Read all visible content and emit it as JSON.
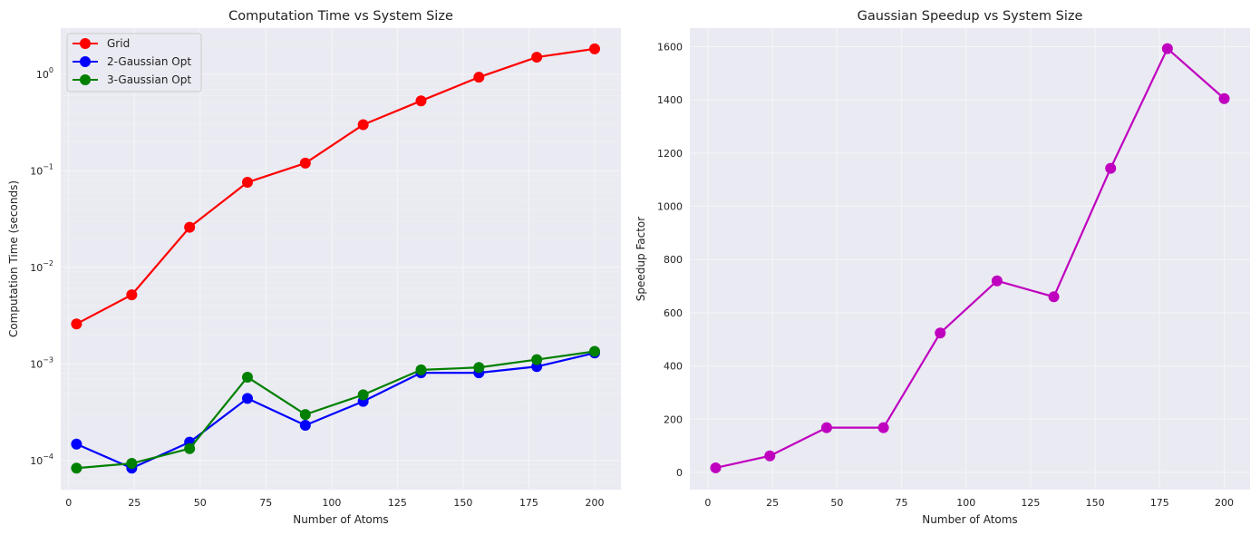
{
  "chart_data": [
    {
      "type": "line",
      "title": "Computation Time vs System Size",
      "xlabel": "Number of Atoms",
      "ylabel": "Computation Time (seconds)",
      "yscale": "log",
      "xlim": [
        -3,
        210
      ],
      "ylim": [
        5e-05,
        3.0
      ],
      "xticks": [
        0,
        25,
        50,
        75,
        100,
        125,
        150,
        175,
        200
      ],
      "yticks": [
        {
          "value": 0.0001,
          "base": "10",
          "exp": "−4"
        },
        {
          "value": 0.001,
          "base": "10",
          "exp": "−3"
        },
        {
          "value": 0.01,
          "base": "10",
          "exp": "−2"
        },
        {
          "value": 0.1,
          "base": "10",
          "exp": "−1"
        },
        {
          "value": 1,
          "base": "10",
          "exp": "0"
        }
      ],
      "grid": true,
      "legend_position": "top-left",
      "x": [
        3,
        24,
        46,
        68,
        90,
        112,
        134,
        156,
        178,
        200
      ],
      "series": [
        {
          "name": "Grid",
          "color": "#ff0000",
          "values": [
            0.0026,
            0.0052,
            0.026,
            0.076,
            0.12,
            0.3,
            0.53,
            0.93,
            1.5,
            1.83
          ]
        },
        {
          "name": "2-Gaussian Opt",
          "color": "#0000ff",
          "values": [
            0.000148,
            8.35e-05,
            0.000155,
            0.00044,
            0.000232,
            0.00041,
            0.00081,
            0.00081,
            0.00094,
            0.0013
          ]
        },
        {
          "name": "3-Gaussian Opt",
          "color": "#008000",
          "values": [
            8.35e-05,
            9.35e-05,
            0.000133,
            0.00073,
            0.0003,
            0.00048,
            0.00087,
            0.00092,
            0.00111,
            0.00135
          ]
        }
      ]
    },
    {
      "type": "line",
      "title": "Gaussian Speedup vs System Size",
      "xlabel": "Number of Atoms",
      "ylabel": "Speedup Factor",
      "yscale": "linear",
      "xlim": [
        -7,
        210
      ],
      "ylim": [
        -65,
        1670
      ],
      "xticks": [
        0,
        25,
        50,
        75,
        100,
        125,
        150,
        175,
        200
      ],
      "yticks": [
        0,
        200,
        400,
        600,
        800,
        1000,
        1200,
        1400,
        1600
      ],
      "grid": true,
      "x": [
        3,
        24,
        46,
        68,
        90,
        112,
        134,
        156,
        178,
        200
      ],
      "series": [
        {
          "name": "Speedup",
          "color": "#bf00bf",
          "values": [
            17,
            62,
            168,
            168,
            524,
            720,
            660,
            1143,
            1593,
            1405
          ]
        }
      ]
    }
  ]
}
